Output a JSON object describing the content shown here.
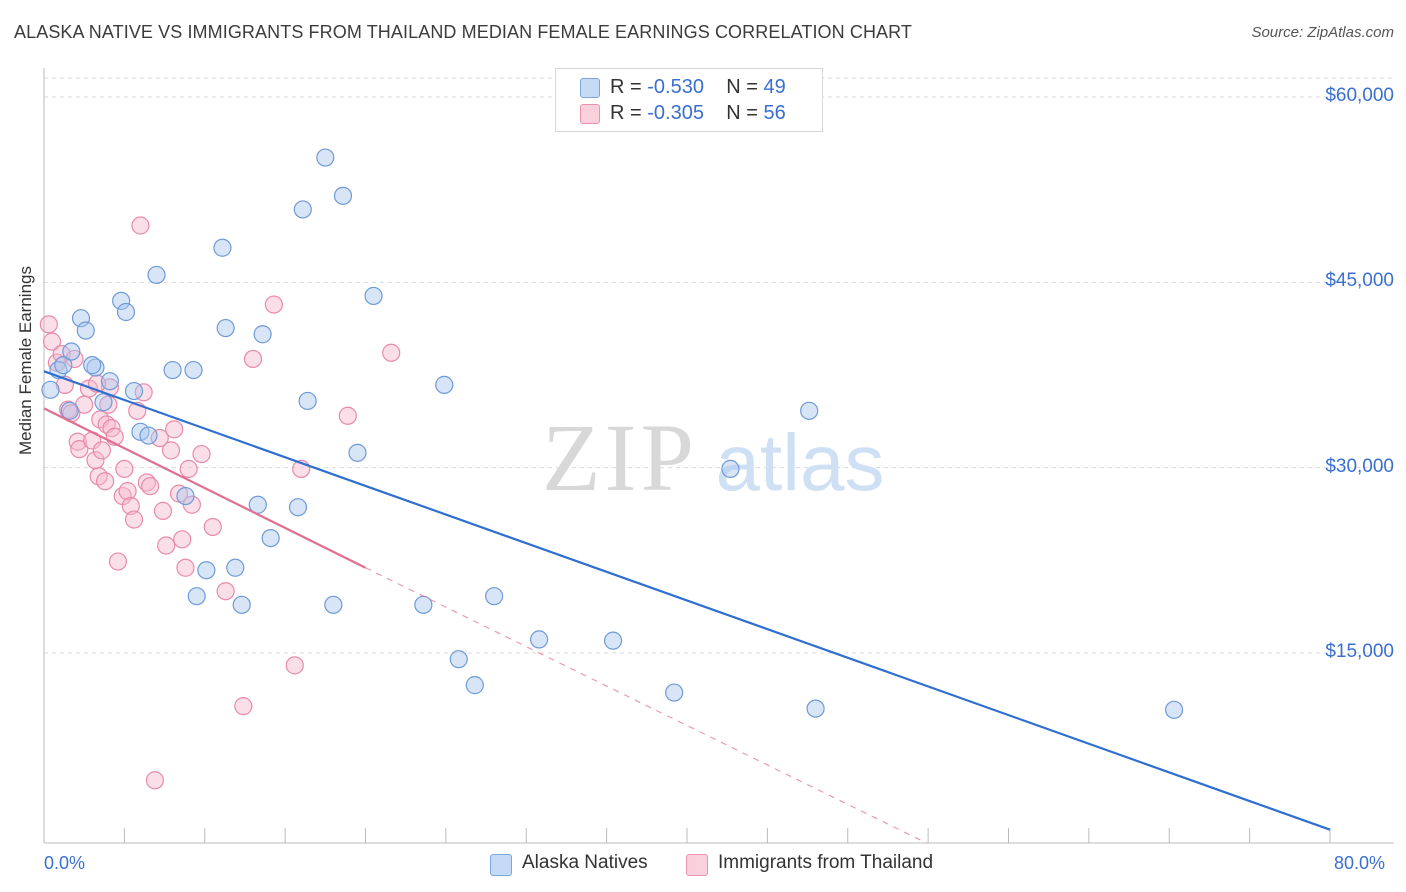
{
  "header": {
    "title": "ALASKA NATIVE VS IMMIGRANTS FROM THAILAND MEDIAN FEMALE EARNINGS CORRELATION CHART",
    "source": "Source: ZipAtlas.com"
  },
  "watermark": {
    "zip": "ZIP",
    "atlas": "atlas"
  },
  "legend": {
    "blue": {
      "r_label": "R = ",
      "r_value": "-0.530",
      "n_label": "N = ",
      "n_value": "49"
    },
    "pink": {
      "r_label": "R = ",
      "r_value": "-0.305",
      "n_label": "N = ",
      "n_value": "56"
    }
  },
  "colors": {
    "blue_fill": "#a9c6ee",
    "blue_stroke": "#6e9bd8",
    "blue_line": "#2f6fcf",
    "pink_fill": "#f6b9cc",
    "pink_stroke": "#e98aa9",
    "pink_line": "#e0708f",
    "grid": "#d9d9d9",
    "tick_text": "#3a6fd0"
  },
  "chart_data": {
    "type": "scatter",
    "title": "ALASKA NATIVE VS IMMIGRANTS FROM THAILAND MEDIAN FEMALE EARNINGS CORRELATION CHART",
    "xlabel": "",
    "ylabel": "Median Female Earnings",
    "xlim": [
      0,
      80
    ],
    "ylim": [
      0,
      62000
    ],
    "x_tick_labels": [
      "0.0%",
      "80.0%"
    ],
    "y_ticks": [
      15000,
      30000,
      45000,
      60000
    ],
    "y_tick_labels": [
      "$15,000",
      "$30,000",
      "$45,000",
      "$60,000"
    ],
    "grid": true,
    "legend_position": "bottom",
    "series": [
      {
        "name": "Alaska Natives",
        "r": -0.53,
        "n": 49,
        "trend": {
          "x": [
            0,
            80
          ],
          "y": [
            37800,
            700
          ]
        },
        "points": [
          [
            0.4,
            36300
          ],
          [
            0.9,
            37900
          ],
          [
            1.2,
            38300
          ],
          [
            1.7,
            39400
          ],
          [
            2.3,
            42100
          ],
          [
            2.6,
            41100
          ],
          [
            3.2,
            38100
          ],
          [
            3.7,
            35300
          ],
          [
            4.1,
            37000
          ],
          [
            4.8,
            43500
          ],
          [
            5.1,
            42600
          ],
          [
            5.6,
            36200
          ],
          [
            6.0,
            32900
          ],
          [
            6.5,
            32600
          ],
          [
            7.0,
            45600
          ],
          [
            8.0,
            37900
          ],
          [
            9.3,
            37900
          ],
          [
            8.8,
            27700
          ],
          [
            9.5,
            19600
          ],
          [
            10.1,
            21700
          ],
          [
            11.1,
            47800
          ],
          [
            11.3,
            41300
          ],
          [
            11.9,
            21900
          ],
          [
            12.3,
            18900
          ],
          [
            13.3,
            27000
          ],
          [
            13.6,
            40800
          ],
          [
            14.1,
            24300
          ],
          [
            15.8,
            26800
          ],
          [
            16.1,
            50900
          ],
          [
            16.4,
            35400
          ],
          [
            17.5,
            55100
          ],
          [
            18.0,
            18900
          ],
          [
            18.6,
            52000
          ],
          [
            19.5,
            31200
          ],
          [
            20.5,
            43900
          ],
          [
            23.6,
            18900
          ],
          [
            24.9,
            36700
          ],
          [
            25.8,
            14500
          ],
          [
            26.8,
            12400
          ],
          [
            28.0,
            19600
          ],
          [
            30.8,
            16100
          ],
          [
            35.4,
            16000
          ],
          [
            39.2,
            11800
          ],
          [
            42.7,
            29900
          ],
          [
            47.6,
            34600
          ],
          [
            48.0,
            10500
          ],
          [
            70.3,
            10400
          ],
          [
            1.6,
            34600
          ],
          [
            3.0,
            38300
          ]
        ]
      },
      {
        "name": "Immigrants from Thailand",
        "r": -0.305,
        "n": 56,
        "trend": {
          "x": [
            0,
            20
          ],
          "y": [
            34800,
            21900
          ]
        },
        "trend_dashed": {
          "x": [
            20,
            80
          ],
          "y": [
            21900,
            -16400
          ]
        },
        "points": [
          [
            0.3,
            41600
          ],
          [
            0.5,
            40200
          ],
          [
            0.8,
            38500
          ],
          [
            1.1,
            39200
          ],
          [
            1.3,
            36700
          ],
          [
            1.5,
            34700
          ],
          [
            1.7,
            34400
          ],
          [
            1.9,
            38800
          ],
          [
            2.1,
            32100
          ],
          [
            2.2,
            31500
          ],
          [
            2.5,
            35100
          ],
          [
            2.8,
            36400
          ],
          [
            3.0,
            32200
          ],
          [
            3.2,
            30600
          ],
          [
            3.4,
            29300
          ],
          [
            3.5,
            33900
          ],
          [
            3.6,
            31400
          ],
          [
            3.8,
            28900
          ],
          [
            3.9,
            33500
          ],
          [
            4.0,
            35100
          ],
          [
            4.1,
            36500
          ],
          [
            4.2,
            33200
          ],
          [
            4.4,
            32500
          ],
          [
            4.6,
            22400
          ],
          [
            4.9,
            27700
          ],
          [
            5.0,
            29900
          ],
          [
            5.2,
            28100
          ],
          [
            5.4,
            26900
          ],
          [
            5.6,
            25800
          ],
          [
            5.8,
            34600
          ],
          [
            6.0,
            49600
          ],
          [
            6.2,
            36100
          ],
          [
            6.4,
            28800
          ],
          [
            6.6,
            28500
          ],
          [
            6.9,
            4700
          ],
          [
            7.2,
            32400
          ],
          [
            7.4,
            26500
          ],
          [
            7.6,
            23700
          ],
          [
            7.9,
            31400
          ],
          [
            8.1,
            33100
          ],
          [
            8.4,
            27900
          ],
          [
            8.6,
            24200
          ],
          [
            8.8,
            21900
          ],
          [
            9.0,
            29900
          ],
          [
            9.2,
            27000
          ],
          [
            9.8,
            31100
          ],
          [
            10.5,
            25200
          ],
          [
            11.3,
            20000
          ],
          [
            12.4,
            10700
          ],
          [
            13.0,
            38800
          ],
          [
            14.3,
            43200
          ],
          [
            15.6,
            14000
          ],
          [
            16.0,
            29900
          ],
          [
            18.9,
            34200
          ],
          [
            21.6,
            39300
          ],
          [
            3.3,
            36800
          ]
        ]
      }
    ]
  },
  "bottom_legend": {
    "blue": "Alaska Natives",
    "pink": "Immigrants from Thailand"
  }
}
